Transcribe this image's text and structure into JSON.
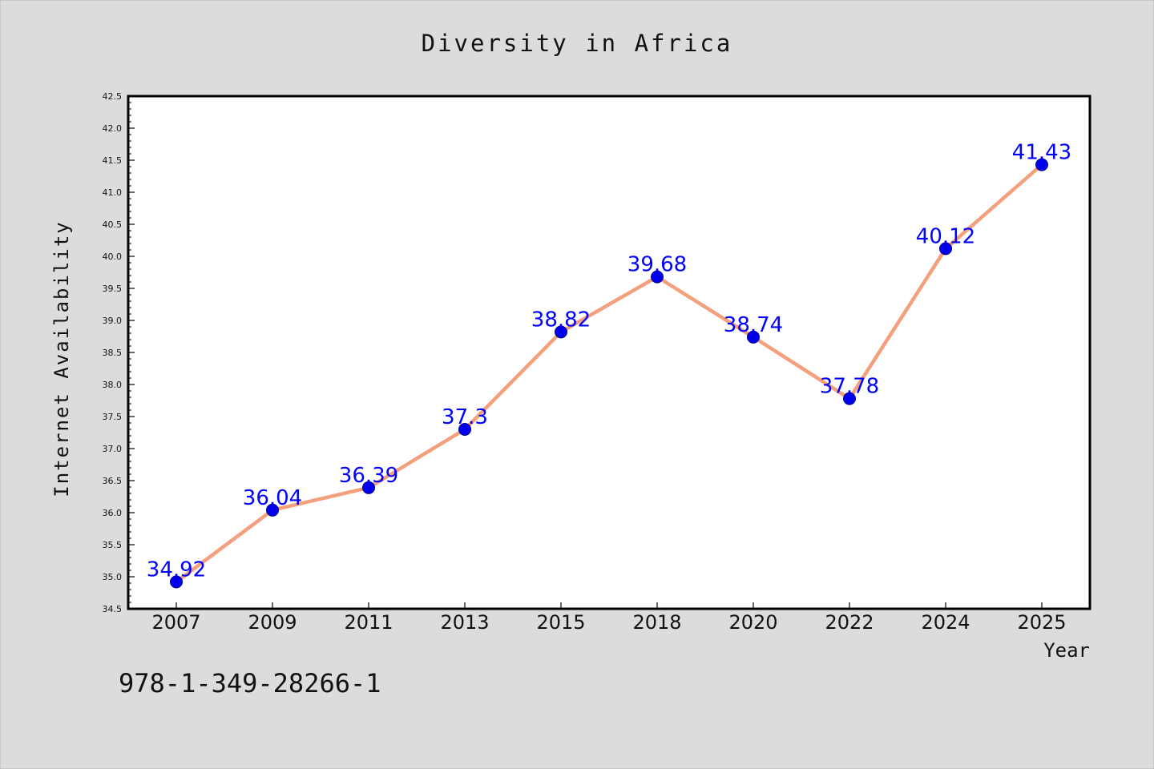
{
  "chart_data": {
    "type": "line",
    "title": "Diversity in Africa",
    "xlabel": "Year",
    "ylabel": "Internet Availability",
    "categories": [
      "2007",
      "2009",
      "2011",
      "2013",
      "2015",
      "2018",
      "2020",
      "2022",
      "2024",
      "2025"
    ],
    "series": [
      {
        "values": [
          34.92,
          36.04,
          36.39,
          37.3,
          38.82,
          39.68,
          38.74,
          37.78,
          40.12,
          41.43
        ],
        "labels": [
          "34.92",
          "36.04",
          "36.39",
          "37.3",
          "38.82",
          "39.68",
          "38.74",
          "37.78",
          "40.12",
          "41.43"
        ]
      }
    ],
    "ylim": [
      34.5,
      42.5
    ],
    "ytick_labels": [
      "34.5",
      "35.0",
      "35.5",
      "36.0",
      "36.5",
      "37.0",
      "37.5",
      "38.0",
      "38.5",
      "39.0",
      "39.5",
      "40.0",
      "40.5",
      "41.0",
      "41.5",
      "42.0",
      "42.5"
    ],
    "grid": false,
    "line_color": "#f4a07c",
    "marker_color": "#0000ee",
    "label_color": "#0000ff"
  },
  "annotation": "978-1-349-28266-1"
}
